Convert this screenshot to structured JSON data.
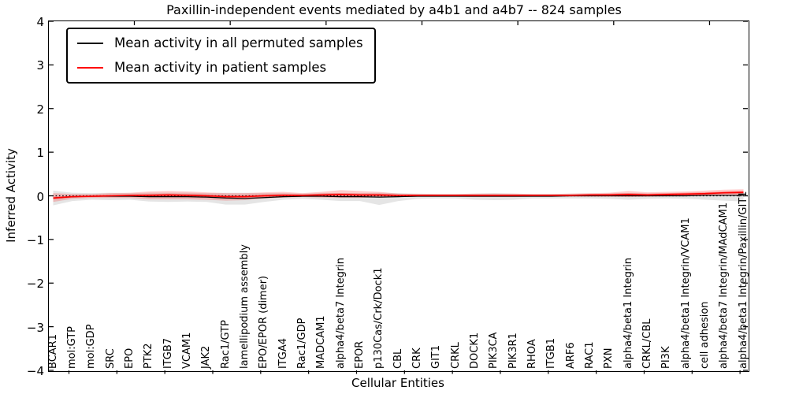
{
  "figure": {
    "background": "#ffffff",
    "frame_color": "#000000"
  },
  "colors": {
    "permuted_line": "#000000",
    "patient_line": "#ff0000",
    "permuted_band": "rgba(0,0,0,0.10)",
    "patient_band": "rgba(255,0,0,0.20)",
    "patient_band_inner": "rgba(255,0,0,0.30)"
  },
  "legend": {
    "entries": [
      {
        "label": "Mean activity in all permuted samples",
        "color": "#000000"
      },
      {
        "label": "Mean activity in patient samples",
        "color": "#ff0000"
      }
    ]
  },
  "chart_data": {
    "type": "line",
    "title": "Paxillin-independent events mediated by a4b1 and a4b7 -- 824 samples",
    "xlabel": "Cellular Entities",
    "ylabel": "Inferred Activity",
    "ylim": [
      -4,
      4
    ],
    "yticks": [
      4,
      3,
      2,
      1,
      0,
      -1,
      -2,
      -3,
      -4
    ],
    "ytick_labels": [
      "4",
      "3",
      "2",
      "1",
      "0",
      "−1",
      "−2",
      "−3",
      "−4"
    ],
    "grid": false,
    "legend_position": "upper left",
    "zero_line": {
      "y": 0,
      "style": "dotted",
      "color": "#000000"
    },
    "categories": [
      "BCAR1",
      "mol:GTP",
      "mol:GDP",
      "SRC",
      "EPO",
      "PTK2",
      "ITGB7",
      "VCAM1",
      "JAK2",
      "Rac1/GTP",
      "lamellipodium assembly",
      "EPO/EPOR (dimer)",
      "ITGA4",
      "Rac1/GDP",
      "MADCAM1",
      "alpha4/beta7 Integrin",
      "EPOR",
      "p130Cas/Crk/Dock1",
      "CBL",
      "CRK",
      "GIT1",
      "CRKL",
      "DOCK1",
      "PIK3CA",
      "PIK3R1",
      "RHOA",
      "ITGB1",
      "ARF6",
      "RAC1",
      "PXN",
      "alpha4/beta1 Integrin",
      "CRKL/CBL",
      "PI3K",
      "alpha4/beta1 Integrin/VCAM1",
      "cell adhesion",
      "alpha4/beta7 Integrin/MAdCAM1",
      "alpha4/beta1 Integrin/Paxillin/GIT1"
    ],
    "series": [
      {
        "name": "Mean activity in all permuted samples",
        "color": "#000000",
        "values": [
          -0.05,
          -0.02,
          -0.01,
          -0.01,
          -0.01,
          -0.02,
          -0.02,
          -0.02,
          -0.03,
          -0.05,
          -0.06,
          -0.04,
          -0.02,
          -0.01,
          -0.01,
          -0.02,
          -0.02,
          -0.03,
          -0.02,
          -0.01,
          -0.01,
          -0.01,
          -0.01,
          -0.01,
          -0.01,
          -0.01,
          -0.01,
          0.0,
          0.0,
          0.0,
          0.0,
          0.0,
          0.0,
          0.0,
          0.01,
          0.01,
          0.01
        ],
        "band_lo": [
          -0.22,
          -0.12,
          -0.09,
          -0.1,
          -0.09,
          -0.13,
          -0.14,
          -0.13,
          -0.14,
          -0.2,
          -0.2,
          -0.14,
          -0.09,
          -0.07,
          -0.09,
          -0.12,
          -0.12,
          -0.21,
          -0.12,
          -0.07,
          -0.06,
          -0.06,
          -0.09,
          -0.1,
          -0.09,
          -0.06,
          -0.06,
          -0.06,
          -0.06,
          -0.07,
          -0.09,
          -0.07,
          -0.06,
          -0.07,
          -0.09,
          -0.11,
          -0.13
        ],
        "band_hi": [
          0.12,
          0.07,
          0.06,
          0.07,
          0.06,
          0.07,
          0.07,
          0.07,
          0.06,
          0.07,
          0.07,
          0.06,
          0.06,
          0.05,
          0.06,
          0.06,
          0.06,
          0.07,
          0.06,
          0.05,
          0.04,
          0.04,
          0.05,
          0.06,
          0.05,
          0.04,
          0.04,
          0.05,
          0.05,
          0.05,
          0.06,
          0.05,
          0.05,
          0.05,
          0.06,
          0.06,
          0.07
        ]
      },
      {
        "name": "Mean activity in patient samples",
        "color": "#ff0000",
        "values": [
          -0.05,
          -0.02,
          -0.01,
          0.0,
          0.01,
          0.01,
          0.02,
          0.01,
          0.0,
          -0.02,
          -0.02,
          0.0,
          0.01,
          0.01,
          0.02,
          0.03,
          0.02,
          0.02,
          0.01,
          0.01,
          0.01,
          0.01,
          0.01,
          0.01,
          0.01,
          0.01,
          0.01,
          0.01,
          0.02,
          0.02,
          0.03,
          0.02,
          0.03,
          0.04,
          0.05,
          0.07,
          0.08
        ],
        "band_lo": [
          -0.14,
          -0.07,
          -0.05,
          -0.05,
          -0.05,
          -0.08,
          -0.08,
          -0.08,
          -0.09,
          -0.11,
          -0.1,
          -0.06,
          -0.04,
          -0.03,
          -0.04,
          -0.05,
          -0.05,
          -0.03,
          -0.03,
          -0.02,
          -0.02,
          -0.02,
          -0.03,
          -0.03,
          -0.03,
          -0.02,
          -0.02,
          -0.02,
          -0.02,
          -0.02,
          -0.03,
          -0.02,
          -0.01,
          0.0,
          0.0,
          0.01,
          0.02
        ],
        "band_hi": [
          0.06,
          0.04,
          0.04,
          0.06,
          0.07,
          0.1,
          0.11,
          0.1,
          0.08,
          0.06,
          0.06,
          0.08,
          0.09,
          0.06,
          0.09,
          0.13,
          0.11,
          0.09,
          0.05,
          0.04,
          0.04,
          0.04,
          0.05,
          0.05,
          0.05,
          0.04,
          0.04,
          0.05,
          0.06,
          0.07,
          0.11,
          0.08,
          0.09,
          0.1,
          0.12,
          0.14,
          0.15
        ],
        "inner_band_lo": [
          -0.08,
          -0.04,
          -0.03,
          -0.02,
          -0.02,
          -0.02,
          -0.02,
          -0.02,
          -0.03,
          -0.05,
          -0.05,
          -0.03,
          -0.02,
          -0.02,
          -0.01,
          0.0,
          -0.01,
          -0.01,
          -0.01,
          -0.01,
          -0.01,
          -0.01,
          -0.01,
          -0.01,
          -0.01,
          -0.01,
          -0.01,
          -0.01,
          -0.01,
          -0.01,
          0.0,
          0.0,
          0.0,
          0.01,
          0.02,
          0.04,
          0.05
        ],
        "inner_band_hi": [
          -0.02,
          0.0,
          0.01,
          0.02,
          0.03,
          0.04,
          0.05,
          0.04,
          0.03,
          0.01,
          0.01,
          0.03,
          0.04,
          0.03,
          0.05,
          0.06,
          0.05,
          0.05,
          0.03,
          0.03,
          0.03,
          0.03,
          0.03,
          0.03,
          0.03,
          0.03,
          0.03,
          0.03,
          0.04,
          0.05,
          0.06,
          0.05,
          0.06,
          0.07,
          0.08,
          0.1,
          0.11
        ]
      }
    ]
  }
}
